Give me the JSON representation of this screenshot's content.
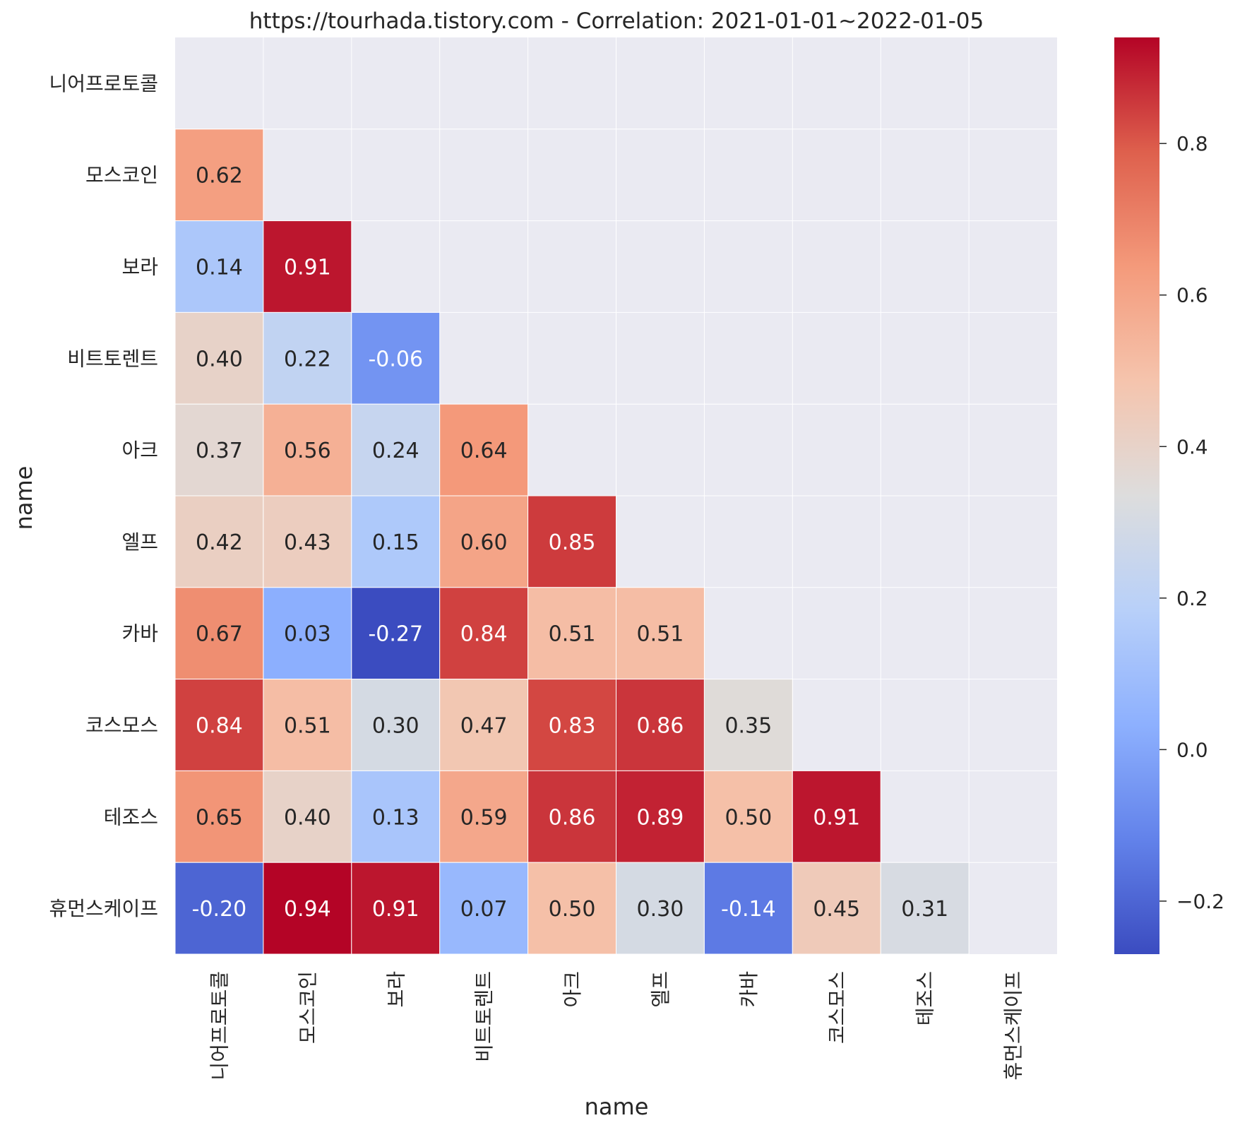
{
  "chart_data": {
    "type": "heatmap",
    "title": "https://tourhada.tistory.com - Correlation: 2021-01-01~2022-01-05",
    "xlabel": "name",
    "ylabel": "name",
    "labels": [
      "니어프로토콜",
      "모스코인",
      "보라",
      "비트토렌트",
      "아크",
      "엘프",
      "카바",
      "코스모스",
      "테조스",
      "휴먼스케이프"
    ],
    "matrix": [
      [
        null,
        null,
        null,
        null,
        null,
        null,
        null,
        null,
        null,
        null
      ],
      [
        0.62,
        null,
        null,
        null,
        null,
        null,
        null,
        null,
        null,
        null
      ],
      [
        0.14,
        0.91,
        null,
        null,
        null,
        null,
        null,
        null,
        null,
        null
      ],
      [
        0.4,
        0.22,
        -0.06,
        null,
        null,
        null,
        null,
        null,
        null,
        null
      ],
      [
        0.37,
        0.56,
        0.24,
        0.64,
        null,
        null,
        null,
        null,
        null,
        null
      ],
      [
        0.42,
        0.43,
        0.15,
        0.6,
        0.85,
        null,
        null,
        null,
        null,
        null
      ],
      [
        0.67,
        0.03,
        -0.27,
        0.84,
        0.51,
        0.51,
        null,
        null,
        null,
        null
      ],
      [
        0.84,
        0.51,
        0.3,
        0.47,
        0.83,
        0.86,
        0.35,
        null,
        null,
        null
      ],
      [
        0.65,
        0.4,
        0.13,
        0.59,
        0.86,
        0.89,
        0.5,
        0.91,
        null,
        null
      ],
      [
        -0.2,
        0.94,
        0.91,
        0.07,
        0.5,
        0.3,
        -0.14,
        0.45,
        0.31,
        null
      ]
    ],
    "value_format": "0.00",
    "colormap": "coolwarm",
    "colorbar": {
      "vmin": -0.27,
      "vmax": 0.94,
      "ticks": [
        -0.2,
        0.0,
        0.2,
        0.4,
        0.6,
        0.8
      ],
      "tick_labels": [
        "−0.2",
        "0.0",
        "0.2",
        "0.4",
        "0.6",
        "0.8"
      ]
    },
    "masked_cell_color": "#eaeaf2",
    "grid_line_color": "#ffffff"
  }
}
